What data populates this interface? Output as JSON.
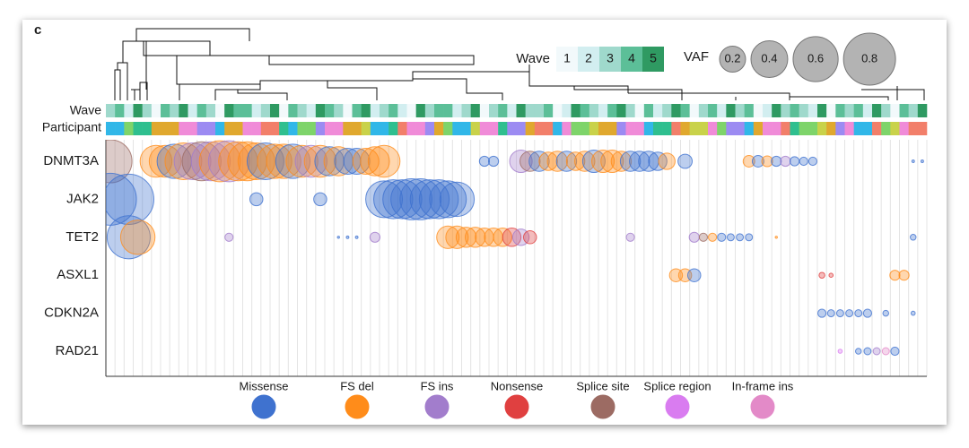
{
  "panel_label": "c",
  "chart_data": {
    "type": "bubble",
    "track_labels": [
      "Wave",
      "Participant"
    ],
    "xlim": [
      0.5,
      90.5
    ],
    "wave_legend": {
      "title": "Wave",
      "levels": [
        1,
        2,
        3,
        4,
        5
      ],
      "colors": [
        "#f2f9fb",
        "#d2eef0",
        "#9fd9cc",
        "#5cbf98",
        "#2f9a62"
      ]
    },
    "vaf_legend": {
      "title": "VAF",
      "sizes": [
        0.2,
        0.4,
        0.6,
        0.8
      ],
      "color": "#b3b3b3"
    },
    "mutation_types": [
      {
        "name": "Missense",
        "color": "#3f72cf"
      },
      {
        "name": "FS del",
        "color": "#ff8c1a"
      },
      {
        "name": "FS ins",
        "color": "#a27dcc"
      },
      {
        "name": "Nonsense",
        "color": "#e04040"
      },
      {
        "name": "Splice site",
        "color": "#9c6b63"
      },
      {
        "name": "Splice region",
        "color": "#d97cf0"
      },
      {
        "name": "In-frame ins",
        "color": "#e38ac8"
      }
    ],
    "wave": [
      3,
      4,
      2,
      5,
      3,
      1,
      4,
      3,
      5,
      2,
      4,
      3,
      1,
      5,
      4,
      4,
      2,
      3,
      5,
      1,
      4,
      3,
      2,
      5,
      4,
      3,
      1,
      4,
      5,
      2,
      3,
      4,
      2,
      1,
      5,
      3,
      4,
      4,
      2,
      3,
      5,
      1,
      3,
      4,
      2,
      5,
      3,
      3,
      4,
      1,
      2,
      5,
      4,
      3,
      2,
      4,
      5,
      3,
      1,
      4,
      2,
      3,
      5,
      4,
      1,
      3,
      4,
      2,
      5,
      3,
      4,
      1,
      2,
      5,
      3,
      4,
      3,
      2,
      5,
      1,
      4,
      3,
      4,
      2,
      5,
      3,
      1,
      4,
      3,
      5
    ],
    "participant_colors": [
      "#31b7e8",
      "#e0a82e",
      "#f08bd8",
      "#7ed46a",
      "#2fbf8f",
      "#9c8bf2",
      "#f27f6a",
      "#c9d24a"
    ],
    "participant": [
      0,
      0,
      3,
      4,
      4,
      1,
      1,
      1,
      2,
      2,
      5,
      5,
      0,
      1,
      1,
      2,
      2,
      6,
      6,
      4,
      0,
      3,
      3,
      5,
      2,
      2,
      1,
      1,
      7,
      0,
      0,
      4,
      6,
      2,
      2,
      5,
      1,
      3,
      0,
      0,
      7,
      2,
      2,
      4,
      5,
      5,
      1,
      6,
      6,
      0,
      2,
      3,
      3,
      7,
      1,
      1,
      5,
      2,
      2,
      0,
      4,
      4,
      6,
      1,
      7,
      7,
      2,
      3,
      5,
      5,
      0,
      1,
      2,
      2,
      6,
      4,
      3,
      3,
      7,
      1,
      5,
      2,
      0,
      0,
      6,
      3,
      7,
      2,
      6,
      6
    ],
    "series": [
      {
        "name": "DNMT3A",
        "x": [
          1,
          6,
          7,
          8,
          9,
          10,
          11,
          12,
          13,
          14,
          15,
          16,
          17,
          18,
          19,
          20,
          21,
          22,
          23,
          24,
          25,
          26,
          27,
          28,
          29,
          30,
          31,
          42,
          43,
          46,
          47,
          48,
          49,
          50,
          51,
          52,
          53,
          54,
          55,
          56,
          57,
          58,
          59,
          60,
          61,
          62,
          64,
          71,
          72,
          73,
          74,
          75,
          76,
          77,
          78,
          89,
          90
        ],
        "values": [
          0.55,
          0.3,
          0.3,
          0.35,
          0.4,
          0.4,
          0.45,
          0.45,
          0.5,
          0.5,
          0.45,
          0.45,
          0.4,
          0.4,
          0.35,
          0.35,
          0.35,
          0.3,
          0.3,
          0.3,
          0.25,
          0.25,
          0.2,
          0.2,
          0.2,
          0.25,
          0.3,
          0.03,
          0.03,
          0.15,
          0.12,
          0.12,
          0.1,
          0.12,
          0.12,
          0.1,
          0.12,
          0.15,
          0.15,
          0.15,
          0.12,
          0.12,
          0.12,
          0.12,
          0.1,
          0.08,
          0.06,
          0.04,
          0.04,
          0.035,
          0.03,
          0.03,
          0.025,
          0.02,
          0.02,
          0.002,
          0.002
        ],
        "mutation": [
          "Splice site",
          "FS del",
          "FS del",
          "Missense",
          "FS del",
          "FS ins",
          "Splice site",
          "FS ins",
          "FS del",
          "FS ins",
          "FS del",
          "FS del",
          "FS del",
          "Missense",
          "FS del",
          "FS del",
          "Missense",
          "FS del",
          "FS ins",
          "FS del",
          "Missense",
          "FS del",
          "Missense",
          "Missense",
          "FS del",
          "FS del",
          "FS del",
          "Missense",
          "Missense",
          "FS ins",
          "Splice site",
          "Missense",
          "FS del",
          "FS del",
          "Missense",
          "FS del",
          "FS del",
          "Missense",
          "FS del",
          "FS del",
          "FS del",
          "Missense",
          "Missense",
          "Missense",
          "Missense",
          "FS del",
          "Missense",
          "FS del",
          "Missense",
          "FS del",
          "Missense",
          "FS ins",
          "Missense",
          "Missense",
          "Missense",
          "Missense",
          "Missense"
        ]
      },
      {
        "name": "JAK2",
        "x": [
          1,
          3,
          17,
          24,
          31,
          32,
          33,
          34,
          35,
          36,
          37,
          38,
          39
        ],
        "values": [
          0.8,
          0.75,
          0.05,
          0.05,
          0.4,
          0.45,
          0.45,
          0.5,
          0.5,
          0.45,
          0.45,
          0.4,
          0.35
        ],
        "mutation": [
          "Missense",
          "Missense",
          "Missense",
          "Missense",
          "Missense",
          "Missense",
          "Missense",
          "Missense",
          "Missense",
          "Missense",
          "Missense",
          "Missense",
          "Missense"
        ]
      },
      {
        "name": "TET2",
        "x": [
          3,
          4,
          14,
          26,
          27,
          28,
          30,
          38,
          39,
          40,
          41,
          42,
          43,
          44,
          45,
          46,
          47,
          58,
          65,
          66,
          67,
          68,
          69,
          70,
          71,
          74,
          89
        ],
        "values": [
          0.55,
          0.35,
          0.02,
          0.001,
          0.002,
          0.002,
          0.03,
          0.15,
          0.15,
          0.12,
          0.12,
          0.1,
          0.1,
          0.1,
          0.1,
          0.08,
          0.05,
          0.02,
          0.03,
          0.02,
          0.02,
          0.02,
          0.015,
          0.015,
          0.015,
          0.001,
          0.01
        ],
        "mutation": [
          "Missense",
          "FS del",
          "FS ins",
          "Missense",
          "Missense",
          "Missense",
          "FS ins",
          "FS del",
          "FS del",
          "FS del",
          "FS del",
          "FS del",
          "FS del",
          "FS del",
          "Nonsense",
          "FS ins",
          "Nonsense",
          "FS ins",
          "FS ins",
          "Splice site",
          "FS del",
          "Missense",
          "Missense",
          "Missense",
          "Missense",
          "FS del",
          "Missense"
        ]
      },
      {
        "name": "ASXL1",
        "x": [
          63,
          64,
          65,
          79,
          80,
          87,
          88
        ],
        "values": [
          0.05,
          0.05,
          0.05,
          0.01,
          0.005,
          0.03,
          0.03
        ],
        "mutation": [
          "FS del",
          "FS del",
          "Missense",
          "Nonsense",
          "Nonsense",
          "FS del",
          "FS del"
        ]
      },
      {
        "name": "CDKN2A",
        "x": [
          79,
          80,
          81,
          82,
          83,
          84,
          86,
          89
        ],
        "values": [
          0.02,
          0.015,
          0.015,
          0.015,
          0.015,
          0.02,
          0.01,
          0.005
        ],
        "mutation": [
          "Missense",
          "Missense",
          "Missense",
          "Missense",
          "Missense",
          "Missense",
          "Missense",
          "Missense"
        ]
      },
      {
        "name": "RAD21",
        "x": [
          81,
          83,
          84,
          85,
          86,
          87
        ],
        "values": [
          0.005,
          0.01,
          0.015,
          0.015,
          0.015,
          0.02
        ],
        "mutation": [
          "Splice region",
          "Missense",
          "Missense",
          "FS ins",
          "In-frame ins",
          "Missense"
        ]
      }
    ]
  }
}
